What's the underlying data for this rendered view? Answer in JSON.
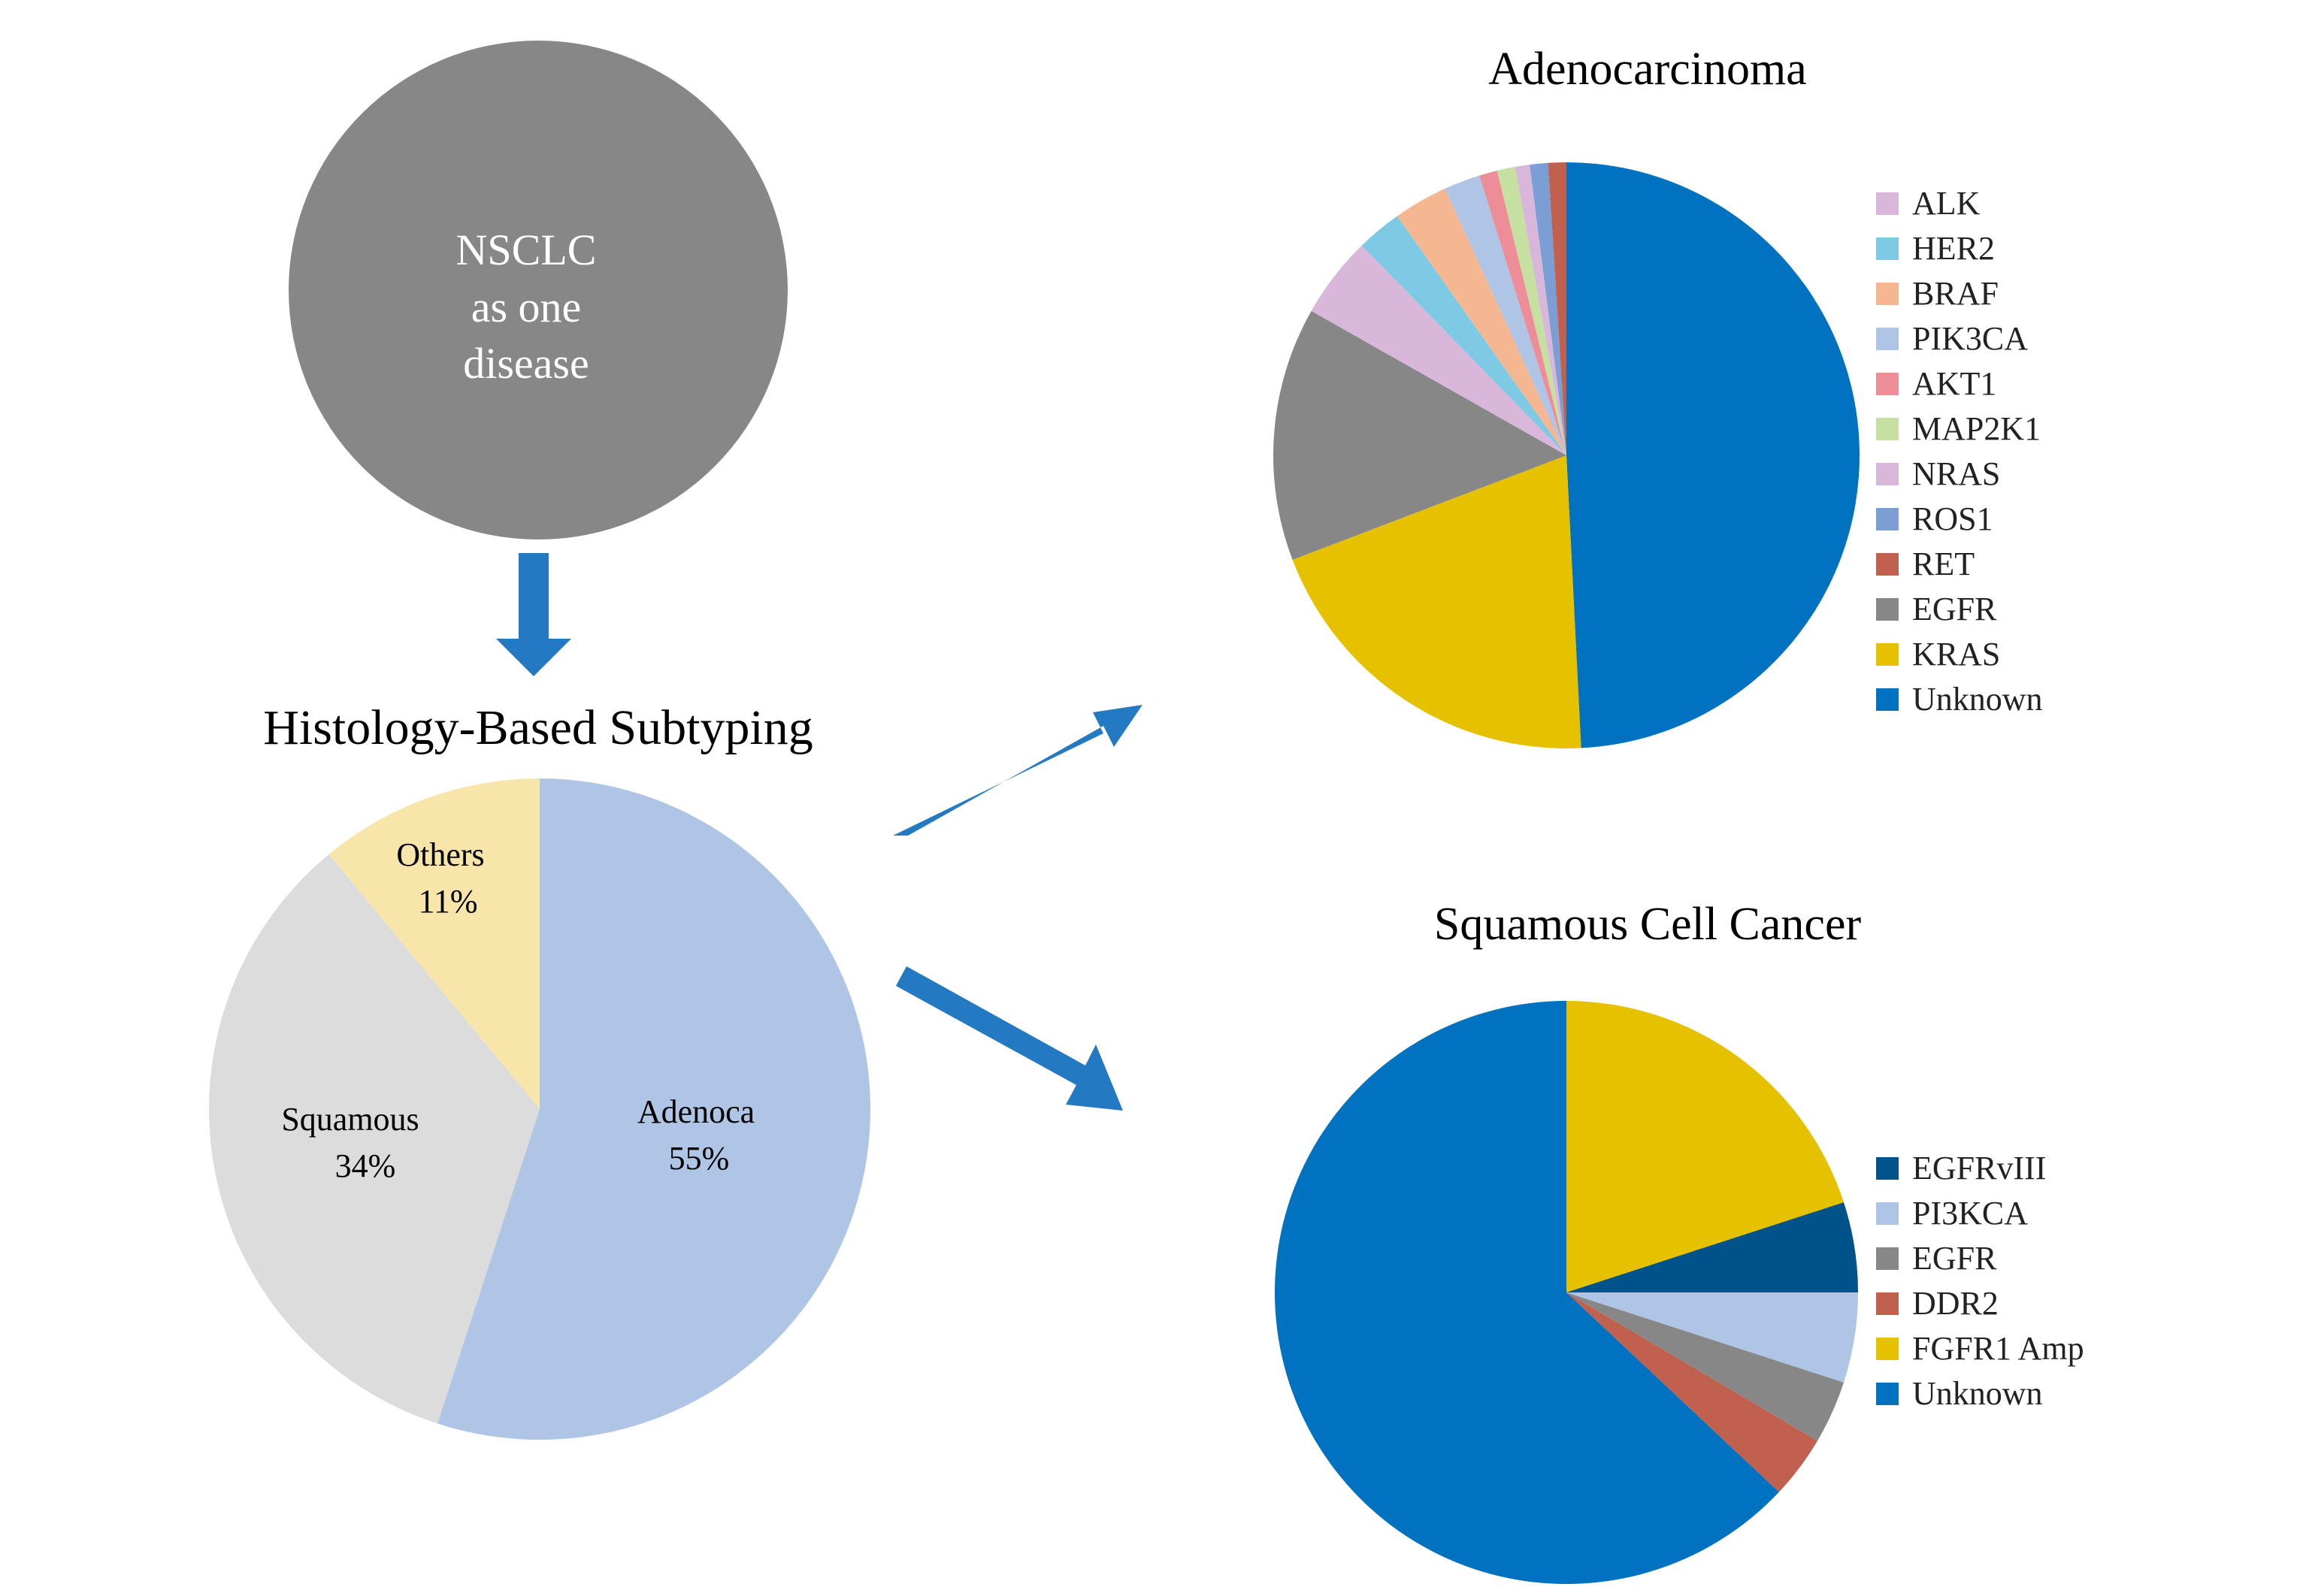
{
  "nsclc": {
    "lines": [
      "NSCLC",
      "as one",
      "disease"
    ],
    "color": "#878787",
    "text_color": "#ffffff"
  },
  "arrow_color": "#2379c2",
  "chart_data": [
    {
      "type": "pie",
      "title": "Histology-Based Subtyping",
      "series": [
        {
          "label": "Adenoca",
          "pct": "55%",
          "value": 55,
          "color": "#aec5e6"
        },
        {
          "label": "Squamous",
          "pct": "34%",
          "value": 34,
          "color": "#dcdcdc"
        },
        {
          "label": "Others",
          "pct": "11%",
          "value": 11,
          "color": "#f7e5aa"
        }
      ]
    },
    {
      "type": "pie",
      "title": "Adenocarcinoma",
      "legend_position": "right",
      "series": [
        {
          "label": "ALK",
          "value": 4.5,
          "color": "#d8b7da"
        },
        {
          "label": "HER2",
          "value": 2.5,
          "color": "#7ecae5"
        },
        {
          "label": "BRAF",
          "value": 3.0,
          "color": "#f4b792"
        },
        {
          "label": "PIK3CA",
          "value": 2.0,
          "color": "#aec5e6"
        },
        {
          "label": "AKT1",
          "value": 1.0,
          "color": "#ec8d98"
        },
        {
          "label": "MAP2K1",
          "value": 1.0,
          "color": "#c5e0a0"
        },
        {
          "label": "NRAS",
          "value": 0.8,
          "color": "#d8b7da"
        },
        {
          "label": "ROS1",
          "value": 1.0,
          "color": "#7b9fd4"
        },
        {
          "label": "RET",
          "value": 1.0,
          "color": "#c0604e"
        },
        {
          "label": "EGFR",
          "value": 14.0,
          "color": "#878787"
        },
        {
          "label": "KRAS",
          "value": 20.0,
          "color": "#e5c100"
        },
        {
          "label": "Unknown",
          "value": 49.2,
          "color": "#0072c0"
        }
      ],
      "draw_order": [
        "Unknown",
        "KRAS",
        "EGFR",
        "ALK",
        "HER2",
        "BRAF",
        "PIK3CA",
        "AKT1",
        "MAP2K1",
        "NRAS",
        "ROS1",
        "RET"
      ]
    },
    {
      "type": "pie",
      "title": "Squamous Cell Cancer",
      "legend_position": "right",
      "series": [
        {
          "label": "EGFRvIII",
          "value": 5.0,
          "color": "#00528a"
        },
        {
          "label": "PI3KCA",
          "value": 5.0,
          "color": "#aec5e6"
        },
        {
          "label": "EGFR",
          "value": 3.5,
          "color": "#878787"
        },
        {
          "label": "DDR2",
          "value": 3.5,
          "color": "#c0604e"
        },
        {
          "label": "FGFR1  Amp",
          "value": 20.0,
          "color": "#e5c100"
        },
        {
          "label": "Unknown",
          "value": 63.0,
          "color": "#0072c0"
        }
      ],
      "draw_order": [
        "FGFR1  Amp",
        "EGFRvIII",
        "PI3KCA",
        "EGFR",
        "DDR2",
        "Unknown"
      ]
    }
  ]
}
